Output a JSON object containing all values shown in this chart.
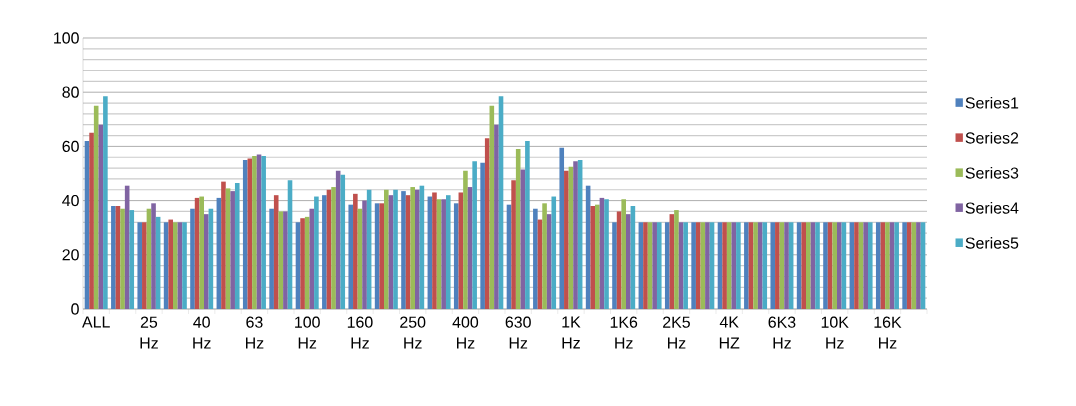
{
  "chart_data": {
    "type": "bar",
    "categories": [
      "ALL",
      null,
      "25 Hz",
      null,
      "40 Hz",
      null,
      "63 Hz",
      null,
      "100 Hz",
      null,
      "160 Hz",
      null,
      "250 Hz",
      null,
      "400 Hz",
      null,
      "630 Hz",
      null,
      "1K Hz",
      null,
      "1K6 Hz",
      null,
      "2K5 Hz",
      null,
      "4K HZ",
      null,
      "6K3 Hz",
      null,
      "10K Hz",
      null,
      "16K Hz",
      null
    ],
    "series": [
      {
        "name": "Series1",
        "color": "#4f81bd",
        "values": [
          62,
          38,
          32,
          32,
          37,
          41,
          55,
          37,
          32,
          42,
          38.5,
          39,
          43.5,
          41.5,
          39,
          54,
          38.5,
          37,
          59.5,
          45.5,
          32,
          32,
          32,
          32,
          32,
          32,
          32,
          32,
          32,
          32,
          32,
          32
        ]
      },
      {
        "name": "Series2",
        "color": "#c0504d",
        "values": [
          65,
          38,
          32,
          33,
          41,
          47,
          55.5,
          42,
          33.5,
          44,
          42.5,
          39,
          42,
          43,
          43,
          63,
          47.5,
          33,
          51,
          38,
          36,
          32,
          35,
          32,
          32,
          32,
          32,
          32,
          32,
          32,
          32,
          32
        ]
      },
      {
        "name": "Series3",
        "color": "#9bbb59",
        "values": [
          75,
          37,
          37,
          32,
          41.5,
          44.5,
          56.5,
          36,
          34,
          45,
          37,
          44,
          45,
          40.5,
          51,
          75,
          59,
          39,
          52.5,
          38.5,
          40.5,
          32,
          36.5,
          32,
          32,
          32,
          32,
          32,
          32,
          32,
          32,
          32
        ]
      },
      {
        "name": "Series4",
        "color": "#8064a2",
        "values": [
          68,
          45.5,
          39,
          32,
          35,
          43.5,
          57,
          36,
          37,
          51,
          40,
          42,
          44,
          40.5,
          45,
          68,
          51.5,
          35,
          54.5,
          41,
          35,
          32,
          32,
          32,
          32,
          32,
          32,
          32,
          32,
          32,
          32,
          32
        ]
      },
      {
        "name": "Series5",
        "color": "#4bacc6",
        "values": [
          78.5,
          36.5,
          34,
          32,
          37,
          46.5,
          56.5,
          47.5,
          41.5,
          49.5,
          44,
          44,
          45.5,
          42,
          54.5,
          78.5,
          62,
          41.5,
          55,
          40.5,
          38,
          32,
          32,
          32,
          32,
          32,
          32,
          32,
          32,
          32,
          32,
          32
        ]
      }
    ],
    "ylim": [
      0,
      100
    ],
    "yticks": [
      0,
      20,
      40,
      60,
      80,
      100
    ],
    "grid": "y",
    "legend": "right"
  }
}
